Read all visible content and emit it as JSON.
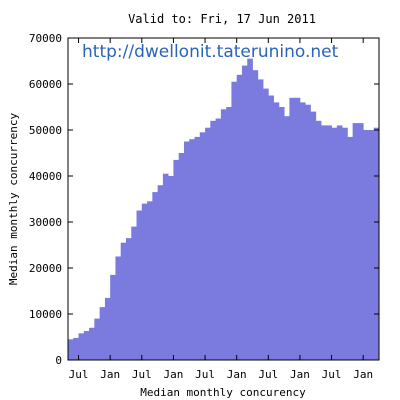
{
  "chart_data": {
    "type": "bar",
    "title": "Valid to: Fri, 17 Jun 2011",
    "xlabel": "Median monthly concurency",
    "ylabel": "Median monthly concurrency",
    "watermark": "http://dwellonit.taterunino.net",
    "ylim": [
      0,
      70000
    ],
    "y_ticks": [
      0,
      10000,
      20000,
      30000,
      40000,
      50000,
      60000,
      70000
    ],
    "x_tick_labels": [
      "Jul",
      "Jan",
      "Jul",
      "Jan",
      "Jul",
      "Jan",
      "Jul",
      "Jan",
      "Jul",
      "Jan"
    ],
    "x_tick_month_index": [
      2,
      8,
      14,
      20,
      26,
      32,
      38,
      44,
      50,
      56
    ],
    "grid": false,
    "bar_color": "#7b7bdf",
    "values": [
      4500,
      4800,
      5800,
      6300,
      7000,
      9000,
      11500,
      13500,
      18500,
      22500,
      25500,
      26500,
      29000,
      32500,
      34000,
      34500,
      36500,
      38000,
      40500,
      40000,
      43500,
      45000,
      47500,
      48000,
      48500,
      49500,
      50500,
      52000,
      52500,
      54500,
      55000,
      60500,
      62000,
      64000,
      65500,
      63000,
      61000,
      59000,
      57500,
      56000,
      55000,
      53000,
      57000,
      57000,
      56000,
      55500,
      54000,
      52000,
      51000,
      51000,
      50500,
      51000,
      50500,
      48500,
      51500,
      51500,
      50000,
      50000,
      50500
    ]
  }
}
